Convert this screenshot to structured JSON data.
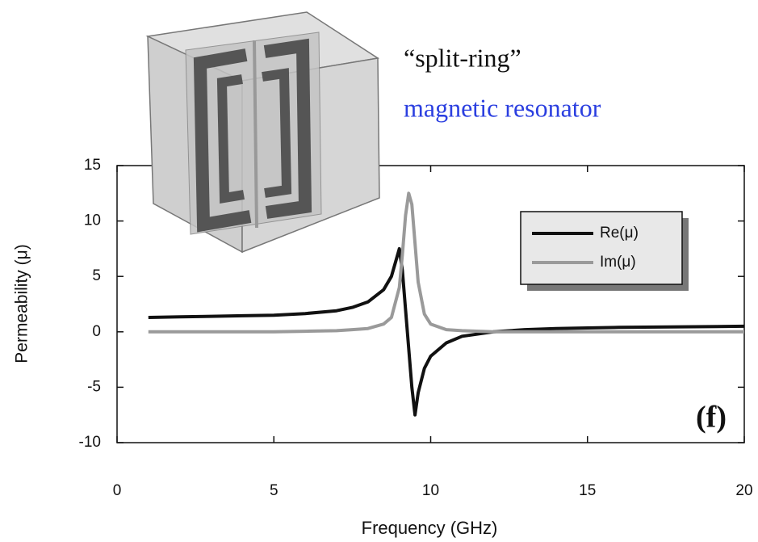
{
  "chart_data": {
    "type": "line",
    "x_label": "Frequency (GHz)",
    "y_label": "Permeability (μ)",
    "panel_label": "(f)",
    "inset_caption": [
      "“split-ring”",
      "magnetic resonator"
    ],
    "inset_caption_colors": [
      "#111111",
      "#2b3fe0"
    ],
    "x": [
      1,
      2,
      3,
      4,
      5,
      6,
      7,
      7.5,
      8,
      8.5,
      8.75,
      9,
      9.1,
      9.2,
      9.3,
      9.4,
      9.5,
      9.6,
      9.8,
      10,
      10.5,
      11,
      12,
      13,
      14,
      15,
      16,
      18,
      20
    ],
    "series": [
      {
        "name": "Re(μ)",
        "color": "#111111",
        "values": [
          1.3,
          1.35,
          1.4,
          1.45,
          1.5,
          1.65,
          1.9,
          2.2,
          2.7,
          3.8,
          5.0,
          7.5,
          5.5,
          2.0,
          -1.5,
          -5.0,
          -7.5,
          -5.5,
          -3.3,
          -2.2,
          -1.0,
          -0.4,
          0.0,
          0.2,
          0.3,
          0.35,
          0.4,
          0.45,
          0.5
        ]
      },
      {
        "name": "Im(μ)",
        "color": "#9a9a9a",
        "values": [
          0,
          0,
          0,
          0,
          0,
          0.05,
          0.1,
          0.2,
          0.3,
          0.7,
          1.3,
          4.0,
          7.0,
          10.5,
          12.5,
          11.5,
          8.0,
          4.5,
          1.6,
          0.7,
          0.2,
          0.1,
          0,
          0,
          0,
          0,
          0,
          0,
          0
        ]
      }
    ],
    "xlim": [
      0,
      20
    ],
    "xticks": [
      0,
      5,
      10,
      15,
      20
    ],
    "ylim": [
      -10,
      15
    ],
    "yticks": [
      -10,
      -5,
      0,
      5,
      10,
      15
    ],
    "legend": "upper right",
    "grid": false
  }
}
